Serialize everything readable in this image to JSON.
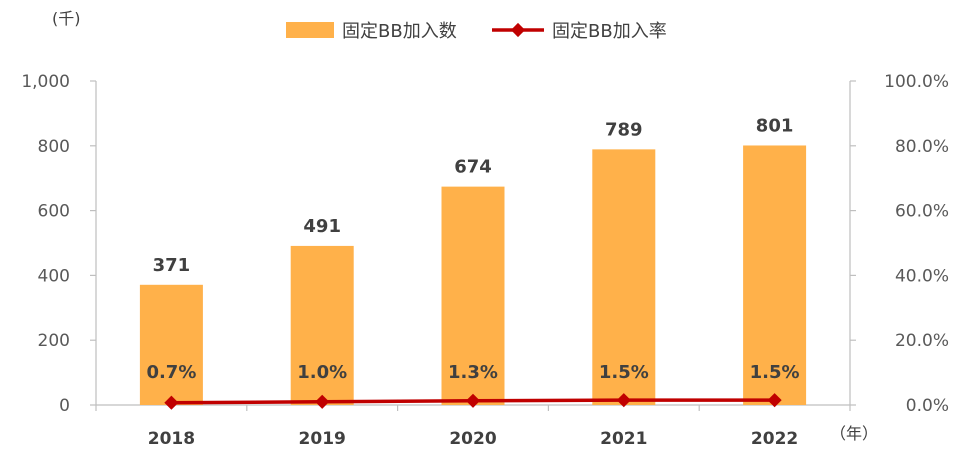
{
  "chart_data": {
    "type": "bar",
    "categories": [
      "2018",
      "2019",
      "2020",
      "2021",
      "2022"
    ],
    "series": [
      {
        "name": "固定BB加入数",
        "type": "bar",
        "axis": "left",
        "values": [
          371,
          491,
          674,
          789,
          801
        ],
        "labels": [
          "371",
          "491",
          "674",
          "789",
          "801"
        ]
      },
      {
        "name": "固定BB加入率",
        "type": "line",
        "axis": "right",
        "values": [
          0.7,
          1.0,
          1.3,
          1.5,
          1.5
        ],
        "labels": [
          "0.7%",
          "1.0%",
          "1.3%",
          "1.5%",
          "1.5%"
        ]
      }
    ],
    "left_axis": {
      "unit_label": "(千)",
      "ylim": [
        0,
        1000
      ],
      "ticks": [
        "0",
        "200",
        "400",
        "600",
        "800",
        "1,000"
      ]
    },
    "right_axis": {
      "ylim": [
        0,
        100
      ],
      "ticks": [
        "0.0%",
        "20.0%",
        "40.0%",
        "60.0%",
        "80.0%",
        "100.0%"
      ]
    },
    "x_unit_label": "（年）",
    "grid": false,
    "legend_position": "top-center",
    "colors": {
      "bar": "#FFB14A",
      "line": "#C00000",
      "axis": "#BFBFBF"
    }
  }
}
